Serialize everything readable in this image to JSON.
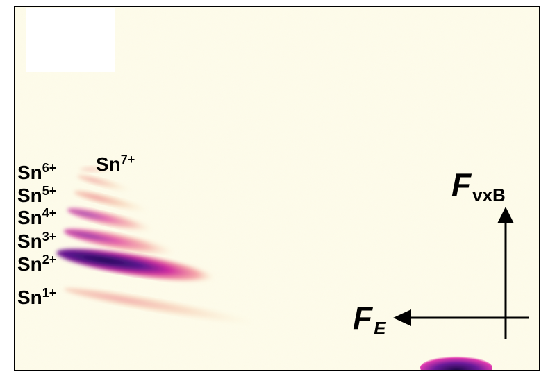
{
  "ion_labels": [
    {
      "element": "Sn",
      "charge": "7+"
    },
    {
      "element": "Sn",
      "charge": "6+"
    },
    {
      "element": "Sn",
      "charge": "5+"
    },
    {
      "element": "Sn",
      "charge": "4+"
    },
    {
      "element": "Sn",
      "charge": "3+"
    },
    {
      "element": "Sn",
      "charge": "2+"
    },
    {
      "element": "Sn",
      "charge": "1+"
    }
  ],
  "force_labels": [
    {
      "symbol": "F",
      "subscript": "vxB"
    },
    {
      "symbol": "F",
      "subscript": "E"
    }
  ]
}
